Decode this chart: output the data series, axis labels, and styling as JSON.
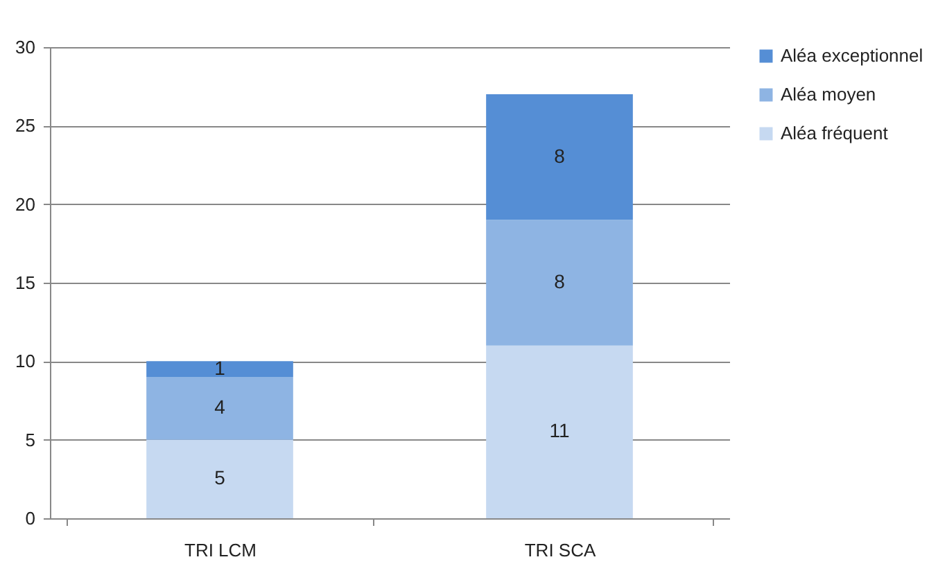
{
  "chart_data": {
    "type": "bar",
    "stacked": true,
    "categories": [
      "TRI LCM",
      "TRI SCA"
    ],
    "series": [
      {
        "name": "Aléa fréquent",
        "color": "#c6d9f1",
        "values": [
          5,
          11
        ]
      },
      {
        "name": "Aléa moyen",
        "color": "#8eb4e3",
        "values": [
          4,
          8
        ]
      },
      {
        "name": "Aléa exceptionnel",
        "color": "#558ed5",
        "values": [
          1,
          8
        ]
      }
    ],
    "ylim": [
      0,
      30
    ],
    "yticks": [
      0,
      5,
      10,
      15,
      20,
      25,
      30
    ],
    "grid": "y",
    "legend": "right",
    "data_labels": true
  }
}
